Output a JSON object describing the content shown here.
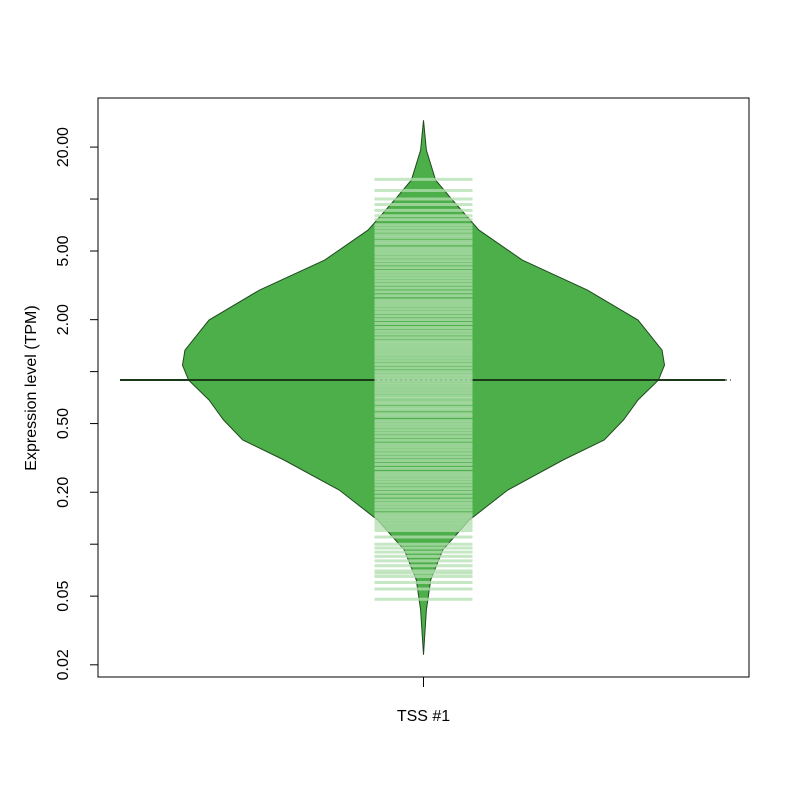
{
  "chart_data": {
    "type": "beanplot",
    "y_label": "Expression level (TPM)",
    "categories": [
      "TSS #1"
    ],
    "log_y": true,
    "ylim": [
      0.017,
      38.5
    ],
    "yticks": [
      {
        "value": 0.02,
        "label": "0.02"
      },
      {
        "value": 0.05,
        "label": "0.05"
      },
      {
        "value": 0.1,
        "label": null
      },
      {
        "value": 0.2,
        "label": "0.20"
      },
      {
        "value": 0.5,
        "label": "0.50"
      },
      {
        "value": 1,
        "label": null
      },
      {
        "value": 2,
        "label": "2.00"
      },
      {
        "value": 5,
        "label": "5.00"
      },
      {
        "value": 10,
        "label": null
      },
      {
        "value": 20,
        "label": "20.00"
      }
    ],
    "color": "#4daf4a",
    "border_color": "#1f4a1f",
    "beanline_color": "#b3dfb0",
    "density": {
      "values": [
        28.6,
        19.2,
        12.9,
        9.87,
        6.61,
        4.43,
        2.97,
        1.99,
        1.33,
        1.09,
        0.894,
        0.685,
        0.525,
        0.402,
        0.308,
        0.206,
        0.138,
        0.0927,
        0.0622,
        0.0417,
        0.0229
      ],
      "widths": [
        0,
        0.012,
        0.05,
        0.12,
        0.23,
        0.41,
        0.68,
        0.89,
        0.99,
        1.0,
        0.975,
        0.89,
        0.83,
        0.75,
        0.58,
        0.35,
        0.19,
        0.08,
        0.03,
        0.012,
        0
      ]
    },
    "observations": [
      13.0,
      11.2,
      10.0,
      9.3,
      8.6,
      8.0,
      7.6,
      7.1,
      6.8,
      6.5,
      6.2,
      6.0,
      5.7,
      5.5,
      5.2,
      5.0,
      4.8,
      4.6,
      4.4,
      4.2,
      4.0,
      3.8,
      3.65,
      3.5,
      3.35,
      3.2,
      3.05,
      2.9,
      2.75,
      2.6,
      2.5,
      2.4,
      2.3,
      2.2,
      2.1,
      2.0,
      1.9,
      1.8,
      1.72,
      1.65,
      1.57,
      1.5,
      1.45,
      1.4,
      1.35,
      1.3,
      1.25,
      1.2,
      1.15,
      1.1,
      1.05,
      1.0,
      0.96,
      0.93,
      0.9,
      0.87,
      0.84,
      0.81,
      0.78,
      0.75,
      0.72,
      0.7,
      0.67,
      0.65,
      0.62,
      0.6,
      0.57,
      0.55,
      0.52,
      0.5,
      0.48,
      0.46,
      0.44,
      0.42,
      0.4,
      0.38,
      0.365,
      0.35,
      0.335,
      0.32,
      0.305,
      0.29,
      0.275,
      0.26,
      0.25,
      0.24,
      0.23,
      0.22,
      0.21,
      0.2,
      0.19,
      0.18,
      0.172,
      0.165,
      0.158,
      0.15,
      0.145,
      0.14,
      0.135,
      0.13,
      0.125,
      0.12,
      0.11,
      0.1,
      0.095,
      0.09,
      0.085,
      0.08,
      0.075,
      0.07,
      0.068,
      0.065,
      0.06,
      0.055,
      0.048
    ],
    "mean": 0.894,
    "overall_mean": 0.894
  }
}
